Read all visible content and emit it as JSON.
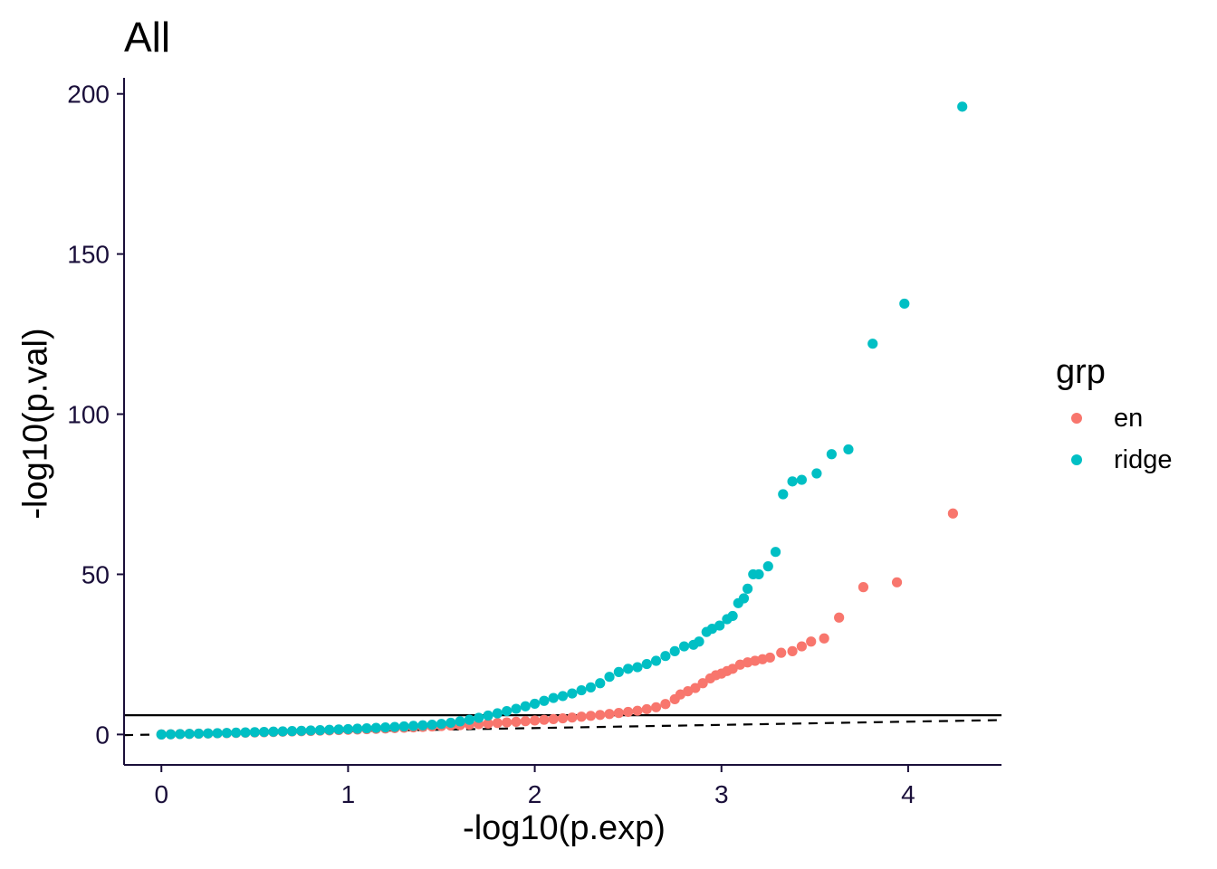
{
  "chart_data": {
    "type": "scatter",
    "title": "All",
    "xlabel": "-log10(p.exp)",
    "ylabel": "-log10(p.val)",
    "xlim": [
      -0.2,
      4.5
    ],
    "ylim": [
      -9.5,
      205
    ],
    "x_ticks": [
      "0",
      "1",
      "2",
      "3",
      "4"
    ],
    "y_ticks": [
      "0",
      "50",
      "100",
      "150",
      "200"
    ],
    "reference_lines": [
      {
        "kind": "hline",
        "y": 6,
        "style": "solid"
      },
      {
        "kind": "abline",
        "slope": 1,
        "intercept": 0,
        "style": "dashed"
      }
    ],
    "legend": {
      "title": "grp",
      "position": "right"
    },
    "series": [
      {
        "name": "en",
        "color": "#F8766D",
        "points": [
          [
            0.0,
            0.0
          ],
          [
            0.05,
            0.05
          ],
          [
            0.1,
            0.12
          ],
          [
            0.15,
            0.18
          ],
          [
            0.2,
            0.24
          ],
          [
            0.25,
            0.3
          ],
          [
            0.3,
            0.37
          ],
          [
            0.35,
            0.43
          ],
          [
            0.4,
            0.5
          ],
          [
            0.45,
            0.57
          ],
          [
            0.5,
            0.64
          ],
          [
            0.55,
            0.71
          ],
          [
            0.6,
            0.78
          ],
          [
            0.65,
            0.86
          ],
          [
            0.7,
            0.94
          ],
          [
            0.75,
            1.02
          ],
          [
            0.8,
            1.1
          ],
          [
            0.85,
            1.19
          ],
          [
            0.9,
            1.28
          ],
          [
            0.95,
            1.37
          ],
          [
            1.0,
            1.46
          ],
          [
            1.05,
            1.56
          ],
          [
            1.1,
            1.66
          ],
          [
            1.15,
            1.77
          ],
          [
            1.2,
            1.88
          ],
          [
            1.25,
            1.99
          ],
          [
            1.3,
            2.11
          ],
          [
            1.35,
            2.23
          ],
          [
            1.4,
            2.36
          ],
          [
            1.45,
            2.49
          ],
          [
            1.5,
            2.63
          ],
          [
            1.55,
            2.77
          ],
          [
            1.6,
            2.92
          ],
          [
            1.65,
            3.07
          ],
          [
            1.7,
            3.24
          ],
          [
            1.75,
            3.4
          ],
          [
            1.8,
            3.58
          ],
          [
            1.85,
            3.76
          ],
          [
            1.9,
            3.95
          ],
          [
            1.95,
            4.15
          ],
          [
            2.0,
            4.36
          ],
          [
            2.05,
            4.58
          ],
          [
            2.1,
            4.8
          ],
          [
            2.15,
            5.04
          ],
          [
            2.2,
            5.29
          ],
          [
            2.25,
            5.55
          ],
          [
            2.3,
            5.82
          ],
          [
            2.35,
            6.1
          ],
          [
            2.4,
            6.4
          ],
          [
            2.45,
            6.72
          ],
          [
            2.5,
            7.05
          ],
          [
            2.55,
            7.4
          ],
          [
            2.6,
            7.9
          ],
          [
            2.65,
            8.5
          ],
          [
            2.7,
            9.5
          ],
          [
            2.75,
            11.0
          ],
          [
            2.78,
            12.5
          ],
          [
            2.82,
            13.5
          ],
          [
            2.86,
            14.5
          ],
          [
            2.9,
            16.0
          ],
          [
            2.94,
            17.5
          ],
          [
            2.97,
            18.5
          ],
          [
            3.0,
            19.0
          ],
          [
            3.03,
            19.8
          ],
          [
            3.06,
            20.5
          ],
          [
            3.1,
            21.8
          ],
          [
            3.14,
            22.5
          ],
          [
            3.18,
            23.0
          ],
          [
            3.22,
            23.5
          ],
          [
            3.26,
            24.0
          ],
          [
            3.32,
            25.5
          ],
          [
            3.38,
            26.0
          ],
          [
            3.43,
            27.5
          ],
          [
            3.48,
            29.0
          ],
          [
            3.55,
            30.0
          ],
          [
            3.63,
            36.5
          ],
          [
            3.76,
            46.0
          ],
          [
            3.94,
            47.5
          ],
          [
            4.24,
            69.0
          ]
        ]
      },
      {
        "name": "ridge",
        "color": "#00BFC4",
        "points": [
          [
            0.0,
            0.0
          ],
          [
            0.05,
            0.06
          ],
          [
            0.1,
            0.13
          ],
          [
            0.15,
            0.2
          ],
          [
            0.2,
            0.27
          ],
          [
            0.25,
            0.34
          ],
          [
            0.3,
            0.41
          ],
          [
            0.35,
            0.48
          ],
          [
            0.4,
            0.56
          ],
          [
            0.45,
            0.64
          ],
          [
            0.5,
            0.72
          ],
          [
            0.55,
            0.8
          ],
          [
            0.6,
            0.88
          ],
          [
            0.65,
            0.97
          ],
          [
            0.7,
            1.06
          ],
          [
            0.75,
            1.15
          ],
          [
            0.8,
            1.25
          ],
          [
            0.85,
            1.35
          ],
          [
            0.9,
            1.46
          ],
          [
            0.95,
            1.57
          ],
          [
            1.0,
            1.68
          ],
          [
            1.05,
            1.8
          ],
          [
            1.1,
            1.93
          ],
          [
            1.15,
            2.06
          ],
          [
            1.2,
            2.2
          ],
          [
            1.25,
            2.35
          ],
          [
            1.3,
            2.51
          ],
          [
            1.35,
            2.68
          ],
          [
            1.4,
            2.86
          ],
          [
            1.45,
            3.05
          ],
          [
            1.5,
            3.3
          ],
          [
            1.55,
            3.65
          ],
          [
            1.6,
            4.1
          ],
          [
            1.65,
            4.6
          ],
          [
            1.7,
            5.2
          ],
          [
            1.75,
            5.9
          ],
          [
            1.8,
            6.6
          ],
          [
            1.85,
            7.3
          ],
          [
            1.9,
            8.0
          ],
          [
            1.95,
            8.8
          ],
          [
            2.0,
            9.6
          ],
          [
            2.05,
            10.5
          ],
          [
            2.1,
            11.4
          ],
          [
            2.15,
            12.0
          ],
          [
            2.2,
            12.8
          ],
          [
            2.25,
            13.8
          ],
          [
            2.3,
            14.7
          ],
          [
            2.35,
            16.0
          ],
          [
            2.4,
            18.0
          ],
          [
            2.45,
            19.5
          ],
          [
            2.5,
            20.5
          ],
          [
            2.55,
            21.0
          ],
          [
            2.6,
            22.0
          ],
          [
            2.65,
            23.0
          ],
          [
            2.7,
            24.5
          ],
          [
            2.75,
            26.0
          ],
          [
            2.8,
            27.5
          ],
          [
            2.85,
            28.0
          ],
          [
            2.88,
            29.0
          ],
          [
            2.92,
            32.0
          ],
          [
            2.95,
            33.0
          ],
          [
            2.99,
            34.0
          ],
          [
            3.03,
            36.0
          ],
          [
            3.06,
            37.0
          ],
          [
            3.09,
            41.0
          ],
          [
            3.12,
            42.5
          ],
          [
            3.14,
            45.5
          ],
          [
            3.17,
            50.0
          ],
          [
            3.2,
            50.0
          ],
          [
            3.25,
            52.5
          ],
          [
            3.29,
            57.0
          ],
          [
            3.33,
            75.0
          ],
          [
            3.38,
            79.0
          ],
          [
            3.43,
            79.5
          ],
          [
            3.51,
            81.5
          ],
          [
            3.59,
            87.5
          ],
          [
            3.68,
            89.0
          ],
          [
            3.81,
            122.0
          ],
          [
            3.98,
            134.5
          ],
          [
            4.29,
            196.0
          ]
        ]
      }
    ]
  }
}
